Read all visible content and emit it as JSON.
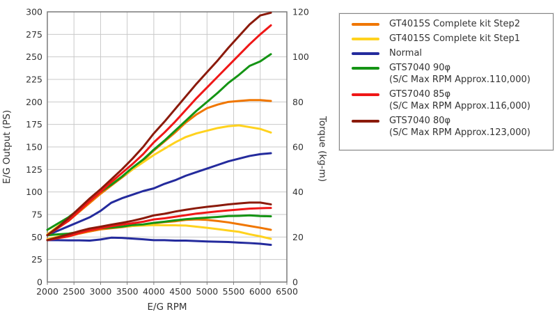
{
  "chart_data": {
    "type": "line",
    "title": "",
    "xlabel": "E/G RPM",
    "ylabel_left": "E/G Output (PS)",
    "ylabel_right": "Torque (kg-m)",
    "grid": true,
    "legend_position": "right",
    "x_range": [
      2000,
      6500
    ],
    "x_ticks": [
      2000,
      2500,
      3000,
      3500,
      4000,
      4500,
      5000,
      5500,
      6000,
      6500
    ],
    "y_left_range": [
      0,
      300
    ],
    "y_left_ticks": [
      0,
      25,
      50,
      75,
      100,
      125,
      150,
      175,
      200,
      225,
      250,
      275,
      300
    ],
    "y_right_range": [
      0,
      120
    ],
    "y_right_ticks": [
      0,
      20,
      40,
      60,
      80,
      100,
      120
    ],
    "rpm": [
      2000,
      2200,
      2400,
      2600,
      2800,
      3000,
      3200,
      3400,
      3600,
      3800,
      4000,
      4200,
      4400,
      4600,
      4800,
      5000,
      5200,
      5400,
      5600,
      5800,
      6000,
      6200
    ],
    "series": [
      {
        "label": "GT4015S Complete kit Step2",
        "color": "#f07600",
        "power_ps": [
          52,
          60,
          68,
          78,
          88,
          98,
          107,
          116,
          125,
          135,
          146,
          156,
          166,
          177,
          186,
          193,
          197,
          200,
          201,
          202,
          202,
          201
        ],
        "torque_kgm": [
          18.6,
          19.5,
          20.3,
          21.5,
          22.5,
          23.4,
          23.9,
          24.4,
          24.9,
          25.4,
          26.1,
          26.6,
          27.0,
          27.6,
          27.8,
          27.6,
          27.1,
          26.5,
          25.7,
          24.9,
          24.1,
          23.2
        ]
      },
      {
        "label": "GT4015S Complete kit Step1",
        "color": "#ffd21e",
        "power_ps": [
          53,
          62,
          71,
          81,
          91,
          100,
          109,
          117,
          125,
          133,
          141,
          148,
          155,
          161,
          165,
          168,
          171,
          173,
          174,
          172,
          170,
          166
        ],
        "torque_kgm": [
          19.0,
          20.2,
          21.2,
          22.3,
          23.3,
          23.9,
          24.4,
          24.6,
          24.9,
          25.1,
          25.3,
          25.2,
          25.2,
          25.1,
          24.6,
          24.1,
          23.5,
          22.9,
          22.3,
          21.2,
          20.3,
          19.2
        ]
      },
      {
        "label": "Normal",
        "color": "#242b9d",
        "power_ps": [
          52,
          57,
          62,
          67,
          72,
          79,
          88,
          93,
          97,
          101,
          104,
          109,
          113,
          118,
          122,
          126,
          130,
          134,
          137,
          140,
          142,
          143
        ],
        "torque_kgm": [
          18.6,
          18.6,
          18.5,
          18.5,
          18.4,
          18.9,
          19.7,
          19.6,
          19.3,
          19.0,
          18.6,
          18.6,
          18.4,
          18.4,
          18.2,
          18.0,
          17.9,
          17.8,
          17.5,
          17.3,
          17.0,
          16.5
        ]
      },
      {
        "label": "GTS7040 90φ",
        "sublabel": "(S/C Max RPM Approx.110,000)",
        "color": "#149414",
        "power_ps": [
          58,
          65,
          72,
          81,
          90,
          100,
          108,
          117,
          127,
          136,
          147,
          157,
          168,
          179,
          190,
          200,
          210,
          221,
          230,
          240,
          245,
          253
        ],
        "torque_kgm": [
          20.8,
          21.2,
          21.5,
          22.3,
          23.0,
          23.9,
          24.2,
          24.6,
          25.3,
          25.6,
          26.3,
          26.8,
          27.4,
          27.9,
          28.3,
          28.6,
          28.9,
          29.3,
          29.4,
          29.6,
          29.3,
          29.2
        ]
      },
      {
        "label": "GTS7040 85φ",
        "sublabel": "(S/C Max RPM Approx.116,000)",
        "color": "#ef1717",
        "power_ps": [
          52,
          60,
          68,
          79,
          90,
          100,
          111,
          121,
          131,
          142,
          155,
          166,
          178,
          191,
          204,
          216,
          228,
          240,
          252,
          264,
          275,
          285
        ],
        "torque_kgm": [
          18.6,
          19.5,
          20.3,
          21.8,
          23.0,
          23.9,
          24.8,
          25.5,
          26.1,
          26.8,
          27.8,
          28.3,
          29.0,
          29.7,
          30.4,
          30.9,
          31.4,
          31.8,
          32.2,
          32.6,
          32.8,
          32.9
        ]
      },
      {
        "label": "GTS7040 80φ",
        "sublabel": "(S/C Max RPM Approx.123,000)",
        "color": "#8b1a0b",
        "power_ps": [
          52,
          61,
          71,
          82,
          93,
          103,
          114,
          125,
          137,
          150,
          165,
          178,
          192,
          206,
          220,
          233,
          246,
          260,
          273,
          286,
          296,
          299
        ],
        "torque_kgm": [
          18.6,
          19.9,
          21.2,
          22.6,
          23.8,
          24.6,
          25.5,
          26.3,
          27.2,
          28.3,
          29.6,
          30.3,
          31.3,
          32.1,
          32.8,
          33.4,
          33.9,
          34.5,
          34.9,
          35.3,
          35.3,
          34.5
        ]
      }
    ],
    "colors": {
      "grid": "#c9c9c9",
      "axis_border": "#7a7a7a",
      "tick_text": "#262626"
    }
  }
}
